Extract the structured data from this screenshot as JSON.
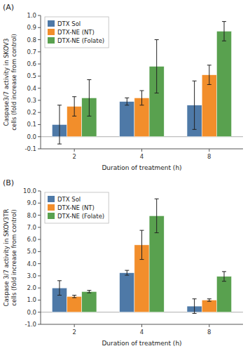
{
  "chart_data": [
    {
      "type": "bar",
      "title": "(A)",
      "x_label": "Duration of treatment (h)",
      "y_label": "Caspase3/7 activity in SKOV3\ncells (fold increase from control)",
      "categories": [
        "2",
        "4",
        "8"
      ],
      "series": [
        {
          "name": "DTX Sol",
          "color": "#4e79a7",
          "values": [
            0.1,
            0.29,
            0.26
          ],
          "errors": [
            0.16,
            0.03,
            0.2
          ]
        },
        {
          "name": "DTX-NE (NT)",
          "color": "#f28e2b",
          "values": [
            0.25,
            0.32,
            0.51
          ],
          "errors": [
            0.08,
            0.06,
            0.08
          ]
        },
        {
          "name": "DTX-NE (Folate)",
          "color": "#59a14f",
          "values": [
            0.32,
            0.58,
            0.87
          ],
          "errors": [
            0.15,
            0.22,
            0.08
          ]
        }
      ],
      "ylim": [
        -0.1,
        1.0
      ],
      "yticks": [
        -0.1,
        {
          "value": 0,
          "label": "0.0"
        },
        0.1,
        0.2,
        0.3,
        0.4,
        0.5,
        0.6,
        0.7,
        0.8,
        0.9,
        {
          "value": 1,
          "label": "1.0"
        }
      ],
      "grid": false,
      "legend": "upper left"
    },
    {
      "type": "bar",
      "title": "(B)",
      "x_label": "Duration of treatment (h)",
      "y_label": "Caspase 3/7 activity in SKOV3TR\ncells (fold increase from control)",
      "categories": [
        "2",
        "4",
        "8"
      ],
      "series": [
        {
          "name": "DTX Sol",
          "color": "#4e79a7",
          "values": [
            2.0,
            3.25,
            0.5
          ],
          "errors": [
            0.6,
            0.2,
            0.6
          ]
        },
        {
          "name": "DTX-NE (NT)",
          "color": "#f28e2b",
          "values": [
            1.3,
            5.55,
            1.0
          ],
          "errors": [
            0.1,
            1.2,
            0.1
          ]
        },
        {
          "name": "DTX-NE (Folate)",
          "color": "#59a14f",
          "values": [
            1.7,
            7.95,
            2.95
          ],
          "errors": [
            0.1,
            1.4,
            0.4
          ]
        }
      ],
      "ylim": [
        -1.0,
        10.0
      ],
      "yticks": [
        {
          "value": -1,
          "label": "-1.0"
        },
        {
          "value": 0,
          "label": "0.0"
        },
        {
          "value": 1,
          "label": "1.0"
        },
        {
          "value": 2,
          "label": "2.0"
        },
        {
          "value": 3,
          "label": "3.0"
        },
        {
          "value": 4,
          "label": "4.0"
        },
        {
          "value": 5,
          "label": "5.0"
        },
        {
          "value": 6,
          "label": "6.0"
        },
        {
          "value": 7,
          "label": "7.0"
        },
        {
          "value": 8,
          "label": "8.0"
        },
        {
          "value": 9,
          "label": "9.0"
        },
        {
          "value": 10,
          "label": "10.0"
        }
      ],
      "grid": false,
      "legend": "upper left"
    }
  ]
}
